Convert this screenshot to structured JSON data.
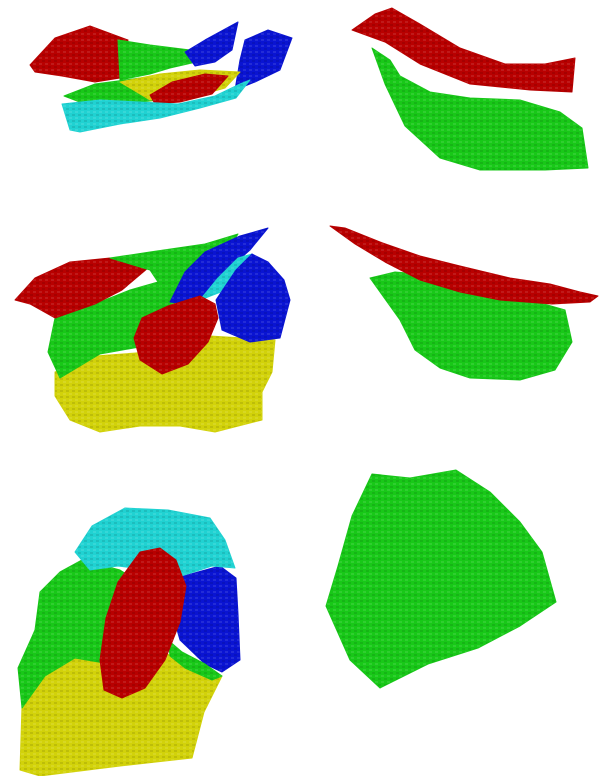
{
  "figure": {
    "panels": [
      {
        "id": "row1-left",
        "view": "segmented-surface",
        "regions": [
          "red",
          "green",
          "blue",
          "yellow",
          "cyan"
        ]
      },
      {
        "id": "row1-right",
        "view": "two-layers",
        "regions": [
          "red",
          "green"
        ]
      },
      {
        "id": "row2-left",
        "view": "segmented-surface",
        "regions": [
          "red",
          "green",
          "blue",
          "yellow",
          "cyan"
        ]
      },
      {
        "id": "row2-right",
        "view": "two-layers",
        "regions": [
          "red",
          "green"
        ]
      },
      {
        "id": "row3-left",
        "view": "segmented-surface",
        "regions": [
          "cyan",
          "green",
          "red",
          "blue",
          "yellow"
        ]
      },
      {
        "id": "row3-right",
        "view": "single-layer",
        "regions": [
          "green"
        ]
      }
    ],
    "colors": {
      "red": "#b80000",
      "green": "#18c818",
      "blue": "#0a14d2",
      "yellow": "#d2d20a",
      "cyan": "#20d2d2",
      "background": "#ffffff"
    }
  }
}
